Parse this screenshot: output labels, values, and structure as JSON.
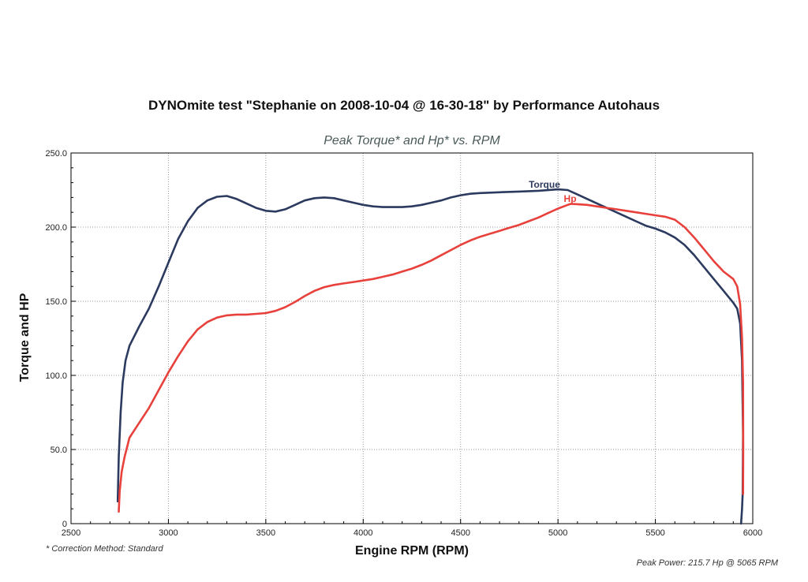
{
  "page": {
    "title": "DYNOmite test \"Stephanie on 2008-10-04 @ 16-30-18\" by Performance Autohaus",
    "correction_note": "* Correction Method: Standard",
    "peak_power": "Peak Power: 215.7 Hp @ 5065 RPM"
  },
  "colors": {
    "torque": "#2b3a5e",
    "hp": "#e8413c",
    "grid": "#9a9a9a"
  },
  "chart_data": {
    "type": "line",
    "title": "Peak Torque* and Hp* vs. RPM",
    "xlabel": "Engine RPM (RPM)",
    "ylabel": "Torque and HP",
    "xlim": [
      2500,
      6000
    ],
    "ylim": [
      0,
      250
    ],
    "x_ticks": [
      2500,
      3000,
      3500,
      4000,
      4500,
      5000,
      5500,
      6000
    ],
    "y_ticks": [
      0,
      50,
      100,
      150,
      200,
      250
    ],
    "x_tick_labels": [
      "2500",
      "3000",
      "3500",
      "4000",
      "4500",
      "5000",
      "5500",
      "6000"
    ],
    "y_tick_labels": [
      "0",
      "50.0",
      "100.0",
      "150.0",
      "200.0",
      "250.0"
    ],
    "grid": true,
    "series": [
      {
        "name": "Torque",
        "color": "#2b3a5e",
        "points": [
          [
            2740,
            15
          ],
          [
            2745,
            45
          ],
          [
            2755,
            75
          ],
          [
            2765,
            95
          ],
          [
            2780,
            110
          ],
          [
            2800,
            120
          ],
          [
            2850,
            133
          ],
          [
            2900,
            145
          ],
          [
            2950,
            160
          ],
          [
            3000,
            176
          ],
          [
            3050,
            192
          ],
          [
            3100,
            204
          ],
          [
            3150,
            213
          ],
          [
            3200,
            218
          ],
          [
            3250,
            220.5
          ],
          [
            3300,
            221
          ],
          [
            3350,
            219
          ],
          [
            3400,
            216
          ],
          [
            3450,
            213
          ],
          [
            3500,
            211
          ],
          [
            3550,
            210.5
          ],
          [
            3600,
            212
          ],
          [
            3650,
            215
          ],
          [
            3700,
            218
          ],
          [
            3750,
            219.5
          ],
          [
            3800,
            220
          ],
          [
            3850,
            219.5
          ],
          [
            3900,
            218
          ],
          [
            3950,
            216.5
          ],
          [
            4000,
            215
          ],
          [
            4050,
            214
          ],
          [
            4100,
            213.5
          ],
          [
            4150,
            213.5
          ],
          [
            4200,
            213.5
          ],
          [
            4250,
            214
          ],
          [
            4300,
            215
          ],
          [
            4350,
            216.5
          ],
          [
            4400,
            218
          ],
          [
            4450,
            220
          ],
          [
            4500,
            221.5
          ],
          [
            4550,
            222.5
          ],
          [
            4600,
            223
          ],
          [
            4700,
            223.5
          ],
          [
            4800,
            224
          ],
          [
            4900,
            224.5
          ],
          [
            5000,
            225.5
          ],
          [
            5050,
            225
          ],
          [
            5100,
            222
          ],
          [
            5150,
            219
          ],
          [
            5200,
            216
          ],
          [
            5250,
            213
          ],
          [
            5300,
            210
          ],
          [
            5350,
            207
          ],
          [
            5400,
            204
          ],
          [
            5450,
            201
          ],
          [
            5500,
            199
          ],
          [
            5550,
            196.5
          ],
          [
            5600,
            193
          ],
          [
            5650,
            188
          ],
          [
            5700,
            181
          ],
          [
            5750,
            173
          ],
          [
            5800,
            165
          ],
          [
            5850,
            157
          ],
          [
            5900,
            149
          ],
          [
            5920,
            145
          ],
          [
            5935,
            135
          ],
          [
            5945,
            110
          ],
          [
            5950,
            60
          ],
          [
            5948,
            20
          ],
          [
            5945,
            10
          ],
          [
            5940,
            0
          ]
        ]
      },
      {
        "name": "Hp",
        "color": "#e8413c",
        "points": [
          [
            2745,
            8
          ],
          [
            2750,
            22
          ],
          [
            2760,
            35
          ],
          [
            2775,
            45
          ],
          [
            2800,
            58
          ],
          [
            2850,
            68
          ],
          [
            2900,
            78
          ],
          [
            2950,
            90
          ],
          [
            3000,
            102
          ],
          [
            3050,
            113
          ],
          [
            3100,
            123
          ],
          [
            3150,
            131
          ],
          [
            3200,
            136
          ],
          [
            3250,
            139
          ],
          [
            3300,
            140.5
          ],
          [
            3350,
            141
          ],
          [
            3400,
            141
          ],
          [
            3450,
            141.5
          ],
          [
            3500,
            142
          ],
          [
            3550,
            143.5
          ],
          [
            3600,
            146
          ],
          [
            3650,
            149.5
          ],
          [
            3700,
            153.5
          ],
          [
            3750,
            157
          ],
          [
            3800,
            159.5
          ],
          [
            3850,
            161
          ],
          [
            3900,
            162
          ],
          [
            3950,
            163
          ],
          [
            4000,
            164
          ],
          [
            4050,
            165
          ],
          [
            4100,
            166.5
          ],
          [
            4150,
            168
          ],
          [
            4200,
            170
          ],
          [
            4250,
            172
          ],
          [
            4300,
            174.5
          ],
          [
            4350,
            177.5
          ],
          [
            4400,
            181
          ],
          [
            4450,
            184.5
          ],
          [
            4500,
            188
          ],
          [
            4550,
            191
          ],
          [
            4600,
            193.5
          ],
          [
            4650,
            195.5
          ],
          [
            4700,
            197.5
          ],
          [
            4750,
            199.5
          ],
          [
            4800,
            201.5
          ],
          [
            4850,
            204
          ],
          [
            4900,
            206.5
          ],
          [
            4950,
            209.5
          ],
          [
            5000,
            212.5
          ],
          [
            5050,
            215
          ],
          [
            5065,
            215.7
          ],
          [
            5100,
            215.5
          ],
          [
            5150,
            215
          ],
          [
            5200,
            214
          ],
          [
            5250,
            213
          ],
          [
            5300,
            212
          ],
          [
            5350,
            211
          ],
          [
            5400,
            210
          ],
          [
            5450,
            209
          ],
          [
            5500,
            208
          ],
          [
            5550,
            207
          ],
          [
            5600,
            205
          ],
          [
            5650,
            200
          ],
          [
            5700,
            193
          ],
          [
            5750,
            185
          ],
          [
            5800,
            177
          ],
          [
            5850,
            170
          ],
          [
            5900,
            165
          ],
          [
            5920,
            160
          ],
          [
            5935,
            148
          ],
          [
            5945,
            125
          ],
          [
            5950,
            95
          ],
          [
            5951,
            50
          ],
          [
            5950,
            20
          ]
        ]
      }
    ]
  }
}
